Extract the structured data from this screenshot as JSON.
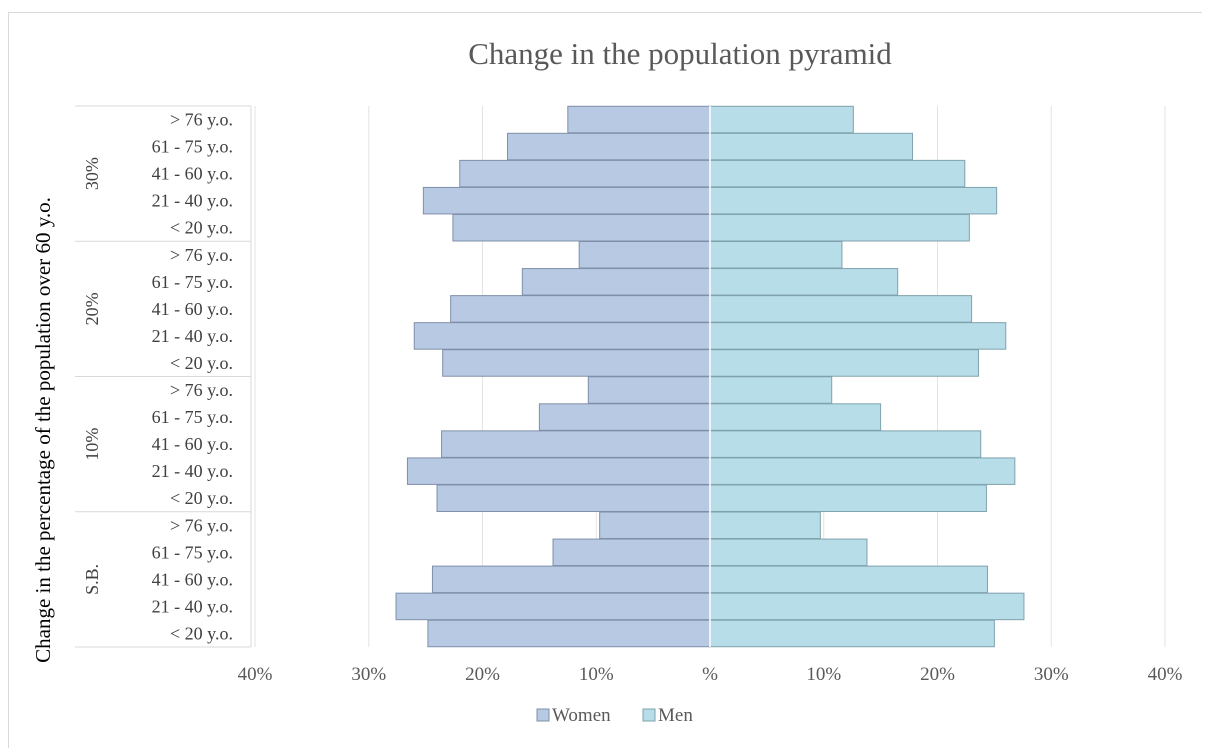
{
  "chart_data": {
    "type": "bar",
    "orientation": "horizontal",
    "title": "Change in the population pyramid",
    "ylabel": "Change in the percentage of the population over 60 y.o.",
    "xlabel": "",
    "xlim": [
      -40,
      40
    ],
    "x_ticks": [
      -40,
      -30,
      -20,
      -10,
      0,
      10,
      20,
      30,
      40
    ],
    "x_tick_labels": [
      "40%",
      "30%",
      "20%",
      "10%",
      "%",
      "10%",
      "20%",
      "30%",
      "40%"
    ],
    "grid": true,
    "legend_position": "bottom",
    "categories": [
      "> 76  y.o.",
      "61 - 75 y.o.",
      "41 - 60 y.o.",
      "21 - 40 y.o.",
      "< 20 y.o."
    ],
    "groups": [
      {
        "name": "30%",
        "women": [
          -12.5,
          -17.8,
          -22.0,
          -25.2,
          -22.6
        ],
        "men": [
          12.6,
          17.8,
          22.4,
          25.2,
          22.8
        ]
      },
      {
        "name": "20%",
        "women": [
          -11.5,
          -16.5,
          -22.8,
          -26.0,
          -23.5
        ],
        "men": [
          11.6,
          16.5,
          23.0,
          26.0,
          23.6
        ]
      },
      {
        "name": "10%",
        "women": [
          -10.7,
          -15.0,
          -23.6,
          -26.6,
          -24.0
        ],
        "men": [
          10.7,
          15.0,
          23.8,
          26.8,
          24.3
        ]
      },
      {
        "name": "S.B.",
        "women": [
          -9.7,
          -13.8,
          -24.4,
          -27.6,
          -24.8
        ],
        "men": [
          9.7,
          13.8,
          24.4,
          27.6,
          25.0
        ]
      }
    ],
    "series": [
      {
        "name": "Women",
        "color": "#b8c9e4",
        "stroke": "#7f8fa9"
      },
      {
        "name": "Men",
        "color": "#b7dde8",
        "stroke": "#7fa2ad"
      }
    ]
  }
}
